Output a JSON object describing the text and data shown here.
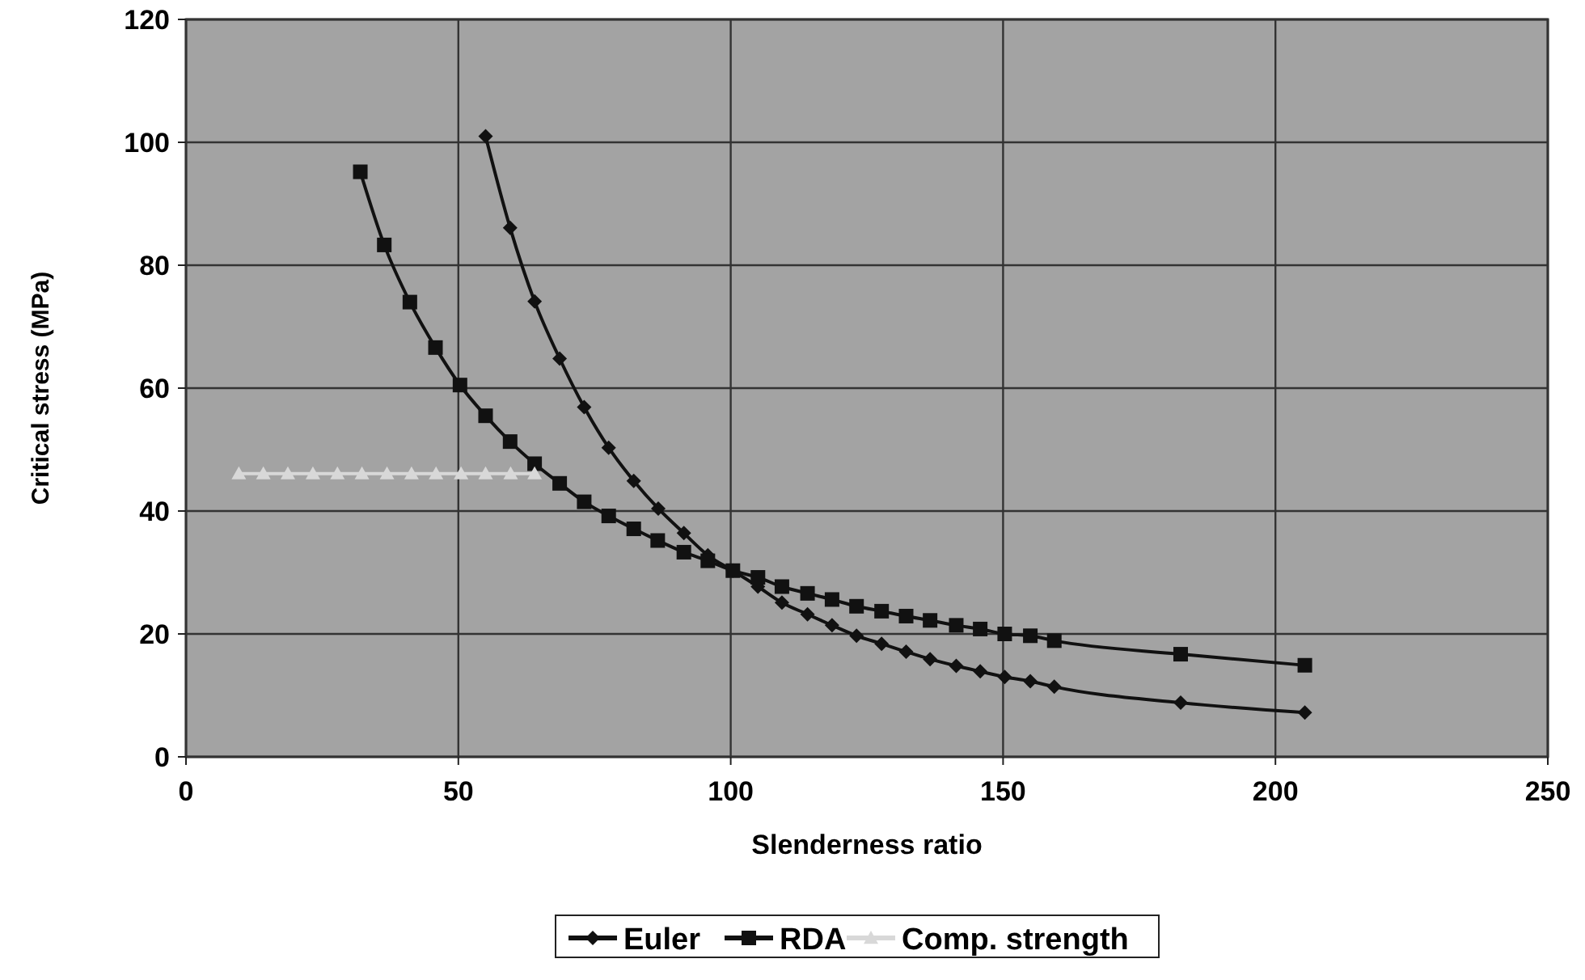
{
  "chart_data": {
    "type": "line",
    "xlabel": "Slenderness ratio",
    "ylabel": "Critical stress (MPa)",
    "xlim": [
      0,
      250
    ],
    "xticks": [
      0,
      50,
      100,
      150,
      200,
      250
    ],
    "ylim": [
      0,
      120
    ],
    "yticks": [
      0,
      20,
      40,
      60,
      80,
      100,
      120
    ],
    "grid": true,
    "legend": "bottom",
    "line_style": "solid",
    "series": [
      {
        "name": "Euler",
        "color": "#111111",
        "marker": "diamond",
        "x": [
          55,
          59.5,
          64,
          68.6,
          73.1,
          77.6,
          82.2,
          86.7,
          91.4,
          95.8,
          100.4,
          105,
          109.4,
          114.1,
          118.6,
          123.1,
          127.7,
          132.2,
          136.6,
          141.4,
          145.8,
          150.3,
          155,
          159.4,
          182.6,
          205.4
        ],
        "values": [
          101,
          86.1,
          74.1,
          64.8,
          56.9,
          50.3,
          44.9,
          40.4,
          36.4,
          32.8,
          30.3,
          27.7,
          25.1,
          23.2,
          21.4,
          19.7,
          18.4,
          17.1,
          15.9,
          14.8,
          13.9,
          13,
          12.3,
          11.4,
          8.8,
          7.2
        ]
      },
      {
        "name": "RDA",
        "color": "#111111",
        "marker": "square",
        "x": [
          32,
          36.4,
          41.1,
          45.8,
          50.3,
          55,
          59.5,
          64,
          68.6,
          73.1,
          77.6,
          82.2,
          86.6,
          91.4,
          95.8,
          100.4,
          105,
          109.4,
          114.1,
          118.6,
          123.1,
          127.7,
          132.2,
          136.6,
          141.4,
          145.8,
          150.3,
          155,
          159.4,
          182.6,
          205.4
        ],
        "values": [
          95.2,
          83.3,
          74,
          66.6,
          60.5,
          55.5,
          51.3,
          47.7,
          44.5,
          41.5,
          39.2,
          37.1,
          35.2,
          33.3,
          31.9,
          30.3,
          29.2,
          27.7,
          26.6,
          25.6,
          24.5,
          23.7,
          22.9,
          22.2,
          21.4,
          20.8,
          20,
          19.7,
          18.9,
          16.7,
          14.9
        ]
      },
      {
        "name": "Comp. strength",
        "color": "#d8d8d8",
        "marker": "triangle",
        "x": [
          9.7,
          14.2,
          18.7,
          23.3,
          27.8,
          32.3,
          36.9,
          41.4,
          45.9,
          50.5,
          55,
          59.6,
          64
        ],
        "values": [
          46.1,
          46.1,
          46.1,
          46.1,
          46.1,
          46.1,
          46.1,
          46.1,
          46.1,
          46.1,
          46.1,
          46.1,
          46.1
        ]
      }
    ]
  }
}
